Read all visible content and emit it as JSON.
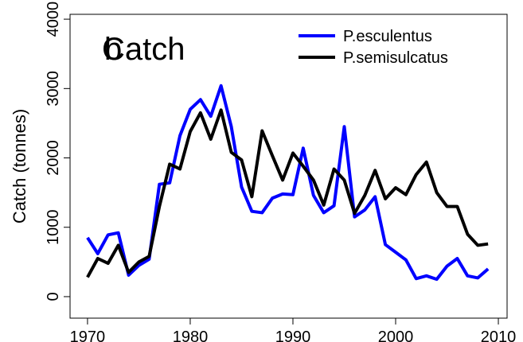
{
  "chart_data": {
    "type": "line",
    "title": "Catch",
    "annotation": "b",
    "y_label": "Catch (tonnes)",
    "x": [
      1970,
      1971,
      1972,
      1973,
      1974,
      1975,
      1976,
      1977,
      1978,
      1979,
      1980,
      1981,
      1982,
      1983,
      1984,
      1985,
      1986,
      1987,
      1988,
      1989,
      1990,
      1991,
      1992,
      1993,
      1994,
      1995,
      1996,
      1997,
      1998,
      1999,
      2000,
      2001,
      2002,
      2003,
      2004,
      2005,
      2006,
      2007,
      2008,
      2009
    ],
    "series": [
      {
        "name": "P.esculentus",
        "color": "#0000ff",
        "values": [
          850,
          620,
          890,
          920,
          310,
          450,
          540,
          1620,
          1640,
          2320,
          2700,
          2840,
          2600,
          3040,
          2450,
          1580,
          1230,
          1210,
          1420,
          1480,
          1470,
          2140,
          1460,
          1210,
          1310,
          2450,
          1150,
          1250,
          1440,
          750,
          640,
          530,
          260,
          300,
          250,
          440,
          550,
          300,
          270,
          400
        ]
      },
      {
        "name": "P.semisulcatus",
        "color": "#000000",
        "values": [
          280,
          550,
          480,
          740,
          350,
          500,
          580,
          1300,
          1910,
          1840,
          2380,
          2650,
          2270,
          2690,
          2080,
          1970,
          1440,
          2390,
          2030,
          1680,
          2070,
          1880,
          1680,
          1320,
          1840,
          1680,
          1200,
          1460,
          1820,
          1410,
          1570,
          1470,
          1760,
          1940,
          1500,
          1300,
          1300,
          900,
          740,
          760
        ]
      }
    ],
    "xlim": [
      1968.3,
      2010.85
    ],
    "xticks": [
      1970,
      1980,
      1990,
      2000,
      2010
    ],
    "ylim": [
      -310,
      4070
    ],
    "yticks": [
      0,
      1000,
      2000,
      3000,
      4000
    ],
    "legend": "top-right"
  }
}
